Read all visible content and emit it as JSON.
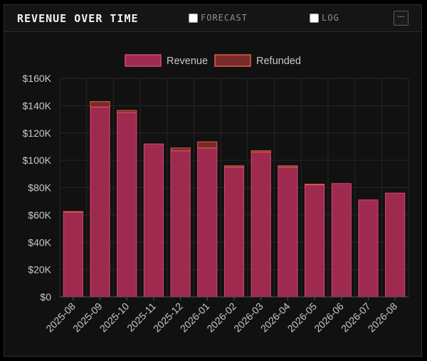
{
  "header": {
    "title": "REVENUE OVER TIME",
    "forecast_label": "FORECAST",
    "forecast_checked": false,
    "log_label": "LOG",
    "log_checked": false,
    "more_icon": "ellipsis-icon",
    "more_label": "···"
  },
  "colors": {
    "revenue_fill": "#9e2a50",
    "revenue_stroke": "#d9486f",
    "refunded_fill": "#7a2a2a",
    "refunded_stroke": "#e0604a",
    "grid": "#262626",
    "tick_text": "#c8c8c8"
  },
  "chart_data": {
    "type": "bar",
    "stacked": true,
    "categories": [
      "2025-08",
      "2025-09",
      "2025-10",
      "2025-11",
      "2025-12",
      "2026-01",
      "2026-02",
      "2026-03",
      "2026-04",
      "2026-05",
      "2026-06",
      "2026-07",
      "2026-08"
    ],
    "series": [
      {
        "name": "Revenue",
        "values": [
          62000,
          139000,
          135000,
          112000,
          107000,
          109000,
          95000,
          106000,
          95000,
          82000,
          83000,
          71000,
          76000
        ]
      },
      {
        "name": "Refunded",
        "values": [
          500,
          4000,
          1500,
          0,
          2000,
          4500,
          1000,
          1000,
          1000,
          500,
          0,
          0,
          0
        ]
      }
    ],
    "ylim": [
      0,
      160000
    ],
    "yticks": [
      0,
      20000,
      40000,
      60000,
      80000,
      100000,
      120000,
      140000,
      160000
    ],
    "ytick_labels": [
      "$0",
      "$20K",
      "$40K",
      "$60K",
      "$80K",
      "$100K",
      "$120K",
      "$140K",
      "$160K"
    ],
    "legend": {
      "position": "top-center",
      "entries": [
        "Revenue",
        "Refunded"
      ]
    },
    "grid": true
  }
}
